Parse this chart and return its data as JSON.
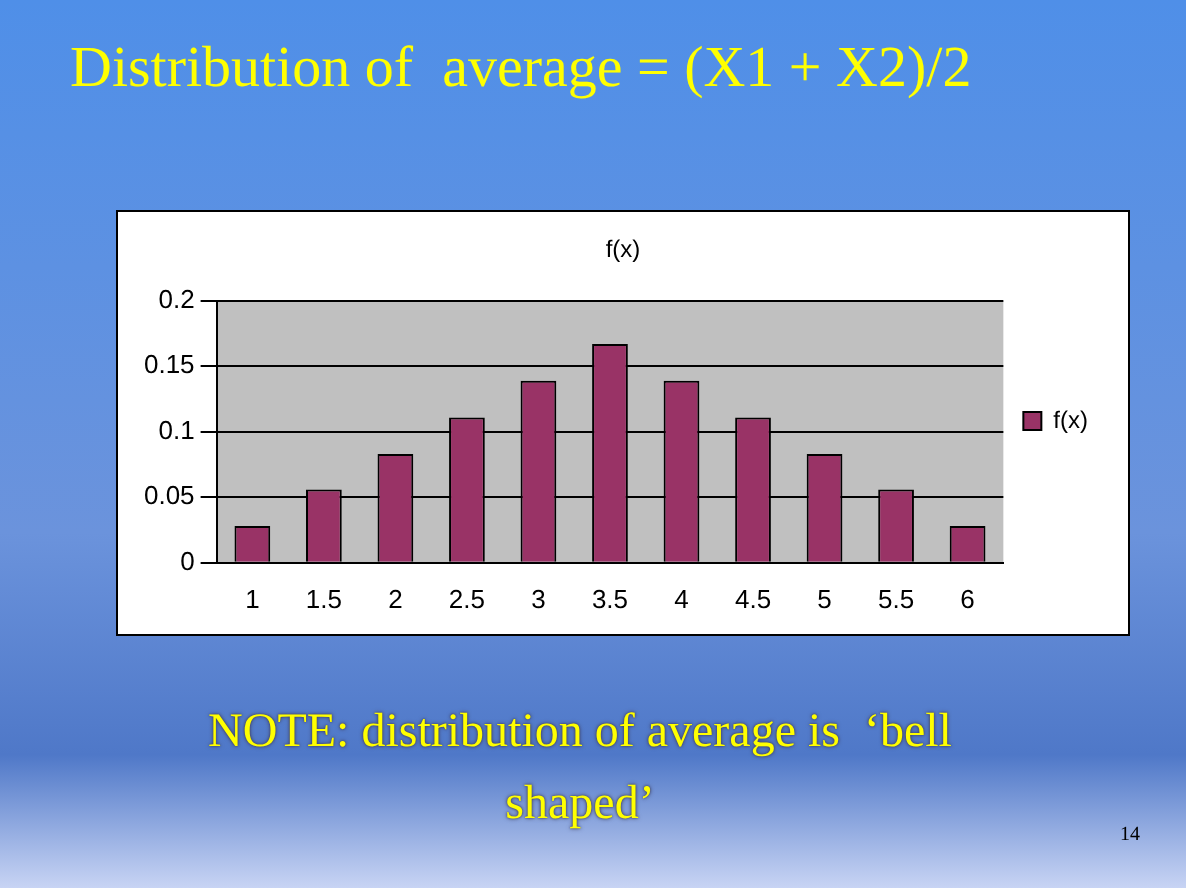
{
  "chart_data": {
    "type": "bar",
    "title": "Distribution of  average = (X1 + X2)/2",
    "subtitle": "f(x)",
    "categories": [
      "1",
      "1.5",
      "2",
      "2.5",
      "3",
      "3.5",
      "4",
      "4.5",
      "5",
      "5.5",
      "6"
    ],
    "series": [
      {
        "name": "f(x)",
        "color": "#993366",
        "values": [
          0.028,
          0.056,
          0.083,
          0.111,
          0.139,
          0.167,
          0.139,
          0.111,
          0.083,
          0.056,
          0.028
        ]
      }
    ],
    "ylim": [
      0,
      0.2
    ],
    "yticks": [
      0,
      0.05,
      0.1,
      0.15,
      0.2
    ],
    "grid": "y",
    "legend": "right",
    "annotations": [
      "NOTE: distribution of average is  ‘bell shaped’",
      "14"
    ]
  }
}
